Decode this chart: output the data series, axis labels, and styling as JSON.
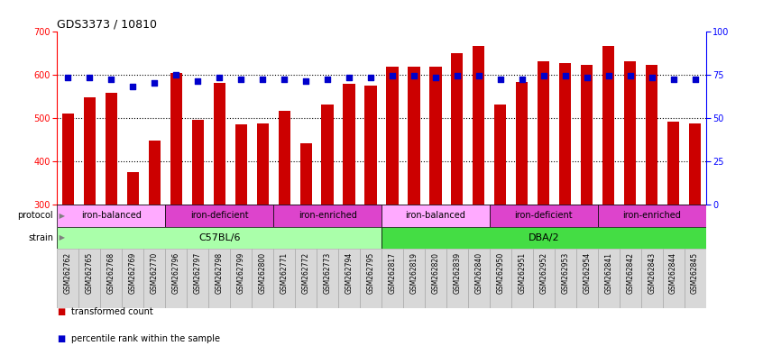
{
  "title": "GDS3373 / 10810",
  "samples": [
    "GSM262762",
    "GSM262765",
    "GSM262768",
    "GSM262769",
    "GSM262770",
    "GSM262796",
    "GSM262797",
    "GSM262798",
    "GSM262799",
    "GSM262800",
    "GSM262771",
    "GSM262772",
    "GSM262773",
    "GSM262794",
    "GSM262795",
    "GSM262817",
    "GSM262819",
    "GSM262820",
    "GSM262839",
    "GSM262840",
    "GSM262950",
    "GSM262951",
    "GSM262952",
    "GSM262953",
    "GSM262954",
    "GSM262841",
    "GSM262842",
    "GSM262843",
    "GSM262844",
    "GSM262845"
  ],
  "transformed_counts": [
    510,
    548,
    557,
    375,
    446,
    604,
    494,
    580,
    484,
    487,
    516,
    440,
    530,
    578,
    575,
    618,
    617,
    617,
    649,
    666,
    530,
    583,
    630,
    627,
    623,
    666,
    631,
    621,
    491,
    487
  ],
  "percentile_ranks": [
    73,
    73,
    72,
    68,
    70,
    75,
    71,
    73,
    72,
    72,
    72,
    71,
    72,
    73,
    73,
    74,
    74,
    73,
    74,
    74,
    72,
    72,
    74,
    74,
    73,
    74,
    74,
    73,
    72,
    72
  ],
  "bar_color": "#cc0000",
  "dot_color": "#0000cc",
  "ylim_left": [
    300,
    700
  ],
  "ylim_right": [
    0,
    100
  ],
  "yticks_left": [
    300,
    400,
    500,
    600,
    700
  ],
  "yticks_right": [
    0,
    25,
    50,
    75,
    100
  ],
  "grid_values": [
    400,
    500,
    600
  ],
  "strain_groups": [
    {
      "label": "C57BL/6",
      "start": 0,
      "end": 15,
      "color": "#aaffaa"
    },
    {
      "label": "DBA/2",
      "start": 15,
      "end": 30,
      "color": "#44dd44"
    }
  ],
  "protocol_colors": {
    "iron-balanced": "#ffaaff",
    "iron-deficient": "#dd44cc",
    "iron-enriched": "#dd44cc"
  },
  "protocol_groups": [
    {
      "label": "iron-balanced",
      "start": 0,
      "end": 5
    },
    {
      "label": "iron-deficient",
      "start": 5,
      "end": 10
    },
    {
      "label": "iron-enriched",
      "start": 10,
      "end": 15
    },
    {
      "label": "iron-balanced",
      "start": 15,
      "end": 20
    },
    {
      "label": "iron-deficient",
      "start": 20,
      "end": 25
    },
    {
      "label": "iron-enriched",
      "start": 25,
      "end": 30
    }
  ]
}
